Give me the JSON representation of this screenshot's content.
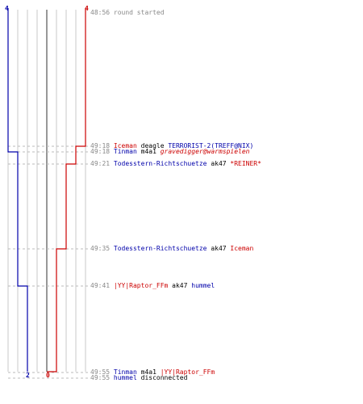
{
  "chart_data": {
    "type": "line",
    "title": "",
    "xlabel": "",
    "ylabel": "",
    "team_colors": {
      "ct": "#0000aa",
      "t": "#cc0000"
    },
    "start_labels": {
      "ct": "4",
      "t": "4"
    },
    "end_labels": {
      "ct": "2",
      "t": "0"
    },
    "series": [
      {
        "team": "ct",
        "alive": [
          4,
          4,
          3,
          3,
          3,
          2,
          2
        ]
      },
      {
        "team": "t",
        "alive": [
          4,
          3,
          3,
          2,
          1,
          1,
          0
        ]
      }
    ],
    "events": [
      {
        "time": "48:56",
        "parts": [
          {
            "text": "round started",
            "style": "gray"
          }
        ]
      },
      {
        "time": "49:18",
        "parts": [
          {
            "text": "Iceman",
            "style": "red"
          },
          {
            "text": " deagle ",
            "style": "plain"
          },
          {
            "text": "TERRORIST-2(TREFF@NIX)",
            "style": "blue"
          }
        ]
      },
      {
        "time": "49:18",
        "parts": [
          {
            "text": "Tinman",
            "style": "blue"
          },
          {
            "text": " m4a1 ",
            "style": "plain"
          },
          {
            "text": "gravedigger@warmspielen",
            "style": "red italic"
          }
        ]
      },
      {
        "time": "49:21",
        "parts": [
          {
            "text": "Todesstern-Richtschuetze",
            "style": "blue"
          },
          {
            "text": " ak47 ",
            "style": "plain"
          },
          {
            "text": "*REINER*",
            "style": "red"
          }
        ]
      },
      {
        "time": "49:35",
        "parts": [
          {
            "text": "Todesstern-Richtschuetze",
            "style": "blue"
          },
          {
            "text": " ak47 ",
            "style": "plain"
          },
          {
            "text": "Iceman",
            "style": "red"
          }
        ]
      },
      {
        "time": "49:41",
        "parts": [
          {
            "text": "|YY|Raptor_FFm",
            "style": "red"
          },
          {
            "text": " ak47 ",
            "style": "plain"
          },
          {
            "text": "hummel",
            "style": "blue"
          }
        ]
      },
      {
        "time": "49:55",
        "parts": [
          {
            "text": "Tinman",
            "style": "blue"
          },
          {
            "text": " m4a1 ",
            "style": "plain"
          },
          {
            "text": "|YY|Raptor_FFm",
            "style": "red"
          }
        ]
      },
      {
        "time": "49:55",
        "parts": [
          {
            "text": "hummel",
            "style": "blue"
          },
          {
            "text": " disconnected",
            "style": "plain"
          }
        ]
      }
    ]
  }
}
